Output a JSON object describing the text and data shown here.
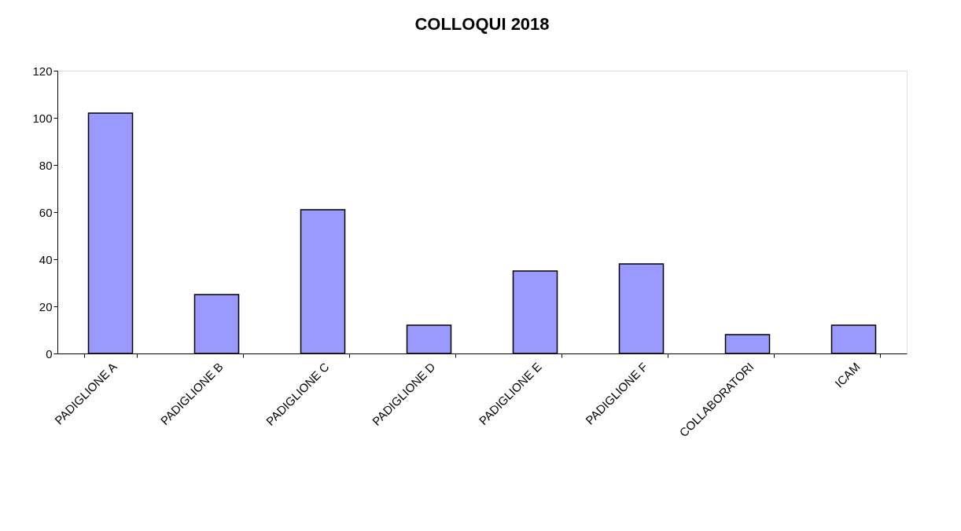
{
  "chart_data": {
    "type": "bar",
    "title": "COLLOQUI 2018",
    "categories": [
      "PADIGLIONE A",
      "PADIGLIONE B",
      "PADIGLIONE C",
      "PADIGLIONE D",
      "PADIGLIONE E",
      "PADIGLIONE F",
      "COLLABORATORI",
      "ICAM"
    ],
    "values": [
      102,
      25,
      61,
      12,
      35,
      38,
      8,
      12
    ],
    "color": "#9999ff",
    "ylim": [
      0,
      120
    ],
    "yticks": [
      0,
      20,
      40,
      60,
      80,
      100,
      120
    ],
    "grid": false
  }
}
